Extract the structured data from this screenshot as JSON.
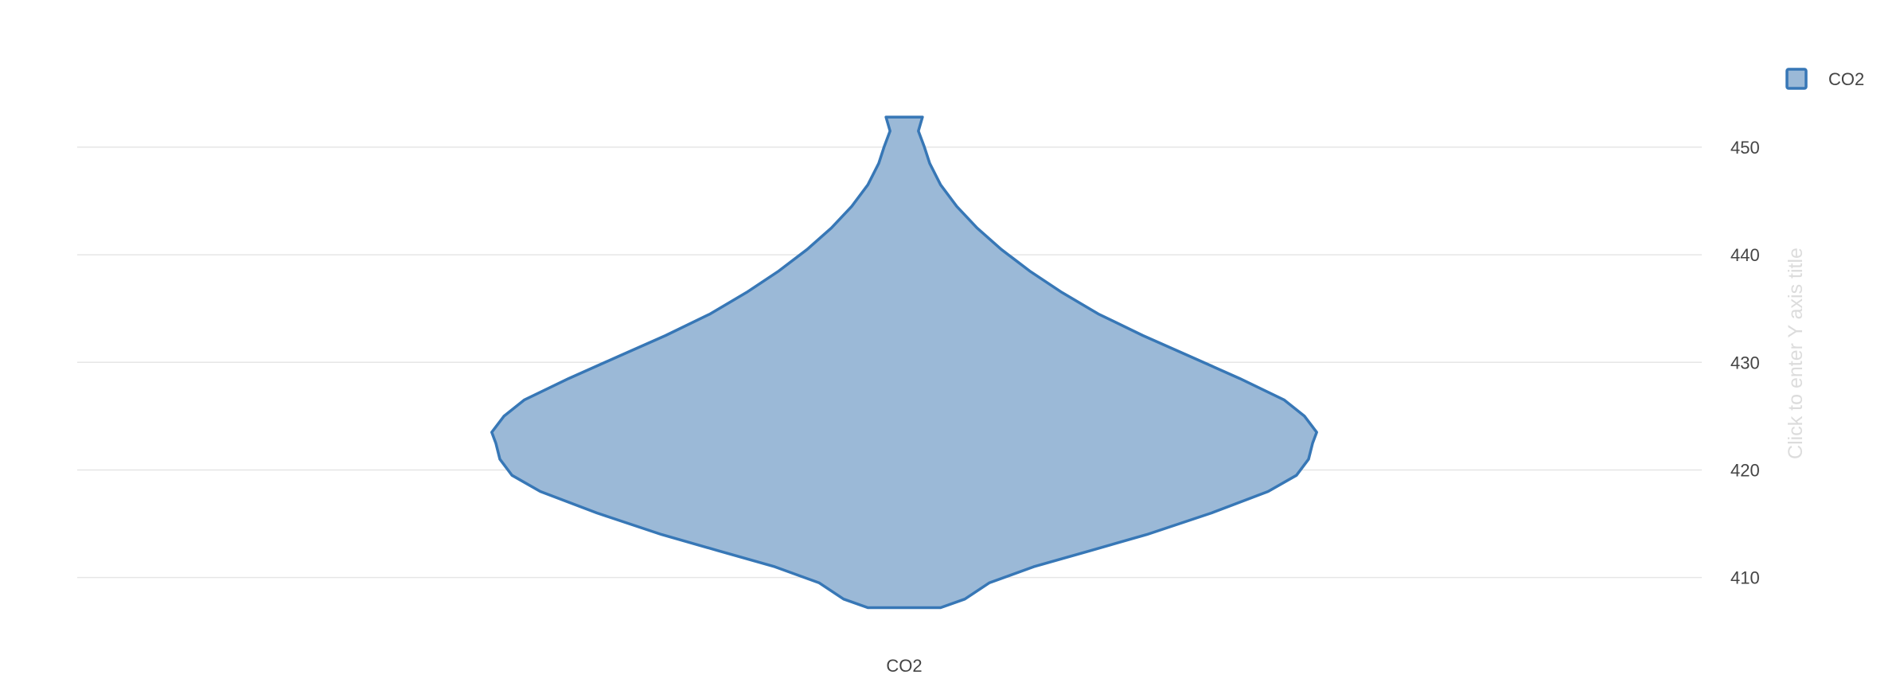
{
  "chart_data": {
    "type": "violin",
    "categories": [
      "CO2"
    ],
    "series": [
      {
        "name": "CO2",
        "color": "#3777b6",
        "fill": "#9bb9d7",
        "y_min": 407.2,
        "y_max": 452.8,
        "density": [
          {
            "y": 407.2,
            "w": 0.09
          },
          {
            "y": 408.0,
            "w": 0.15
          },
          {
            "y": 409.5,
            "w": 0.21
          },
          {
            "y": 411.0,
            "w": 0.32
          },
          {
            "y": 412.5,
            "w": 0.46
          },
          {
            "y": 414.0,
            "w": 0.6
          },
          {
            "y": 416.0,
            "w": 0.76
          },
          {
            "y": 418.0,
            "w": 0.9
          },
          {
            "y": 419.5,
            "w": 0.97
          },
          {
            "y": 421.0,
            "w": 1.0
          },
          {
            "y": 422.5,
            "w": 1.01
          },
          {
            "y": 423.5,
            "w": 1.02
          },
          {
            "y": 425.0,
            "w": 0.99
          },
          {
            "y": 426.5,
            "w": 0.94
          },
          {
            "y": 428.5,
            "w": 0.83
          },
          {
            "y": 430.5,
            "w": 0.71
          },
          {
            "y": 432.5,
            "w": 0.59
          },
          {
            "y": 434.5,
            "w": 0.48
          },
          {
            "y": 436.5,
            "w": 0.39
          },
          {
            "y": 438.5,
            "w": 0.31
          },
          {
            "y": 440.5,
            "w": 0.24
          },
          {
            "y": 442.5,
            "w": 0.18
          },
          {
            "y": 444.5,
            "w": 0.13
          },
          {
            "y": 446.5,
            "w": 0.09
          },
          {
            "y": 448.5,
            "w": 0.063
          },
          {
            "y": 450.0,
            "w": 0.05
          },
          {
            "y": 451.5,
            "w": 0.035
          },
          {
            "y": 452.8,
            "w": 0.045
          }
        ]
      }
    ],
    "y_axis": {
      "ticks": [
        410,
        420,
        430,
        440,
        450
      ],
      "tick_labels": [
        "410",
        "420",
        "430",
        "440",
        "450"
      ],
      "ylim": [
        404.5,
        458.5
      ],
      "side": "right",
      "title_placeholder": "Click to enter Y axis title"
    },
    "grid": true,
    "legend": {
      "position": "top-right",
      "entries": [
        "CO2"
      ]
    }
  }
}
